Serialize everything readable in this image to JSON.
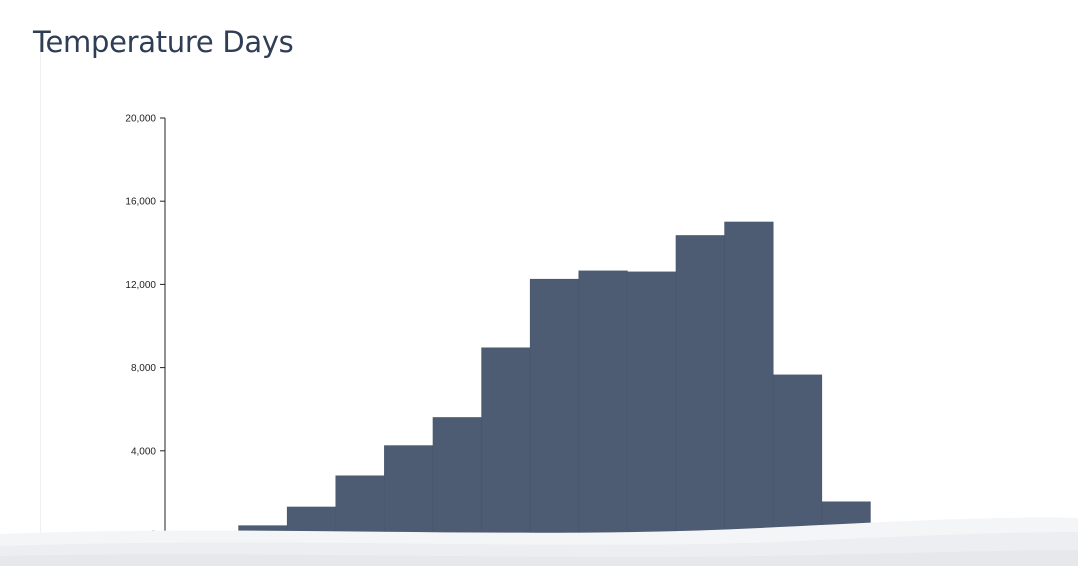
{
  "page": {
    "title": "Temperature Days"
  },
  "colors": {
    "bar": "#4d5c73",
    "axis": "#222222",
    "title": "#2f3e55"
  },
  "chart_data": {
    "type": "bar",
    "title": "",
    "xlabel": "",
    "ylabel": "",
    "bin_count": 15,
    "values": [
      0,
      400,
      1300,
      2800,
      4250,
      5600,
      8950,
      12250,
      12650,
      12600,
      14350,
      15000,
      7650,
      1550,
      100
    ],
    "ylim": [
      0,
      20000
    ],
    "yticks": [
      0,
      4000,
      8000,
      12000,
      16000,
      20000
    ],
    "ytick_labels": [
      "0",
      "4,000",
      "8,000",
      "12,000",
      "16,000",
      "20,000"
    ],
    "grid": false,
    "legend": "none"
  }
}
